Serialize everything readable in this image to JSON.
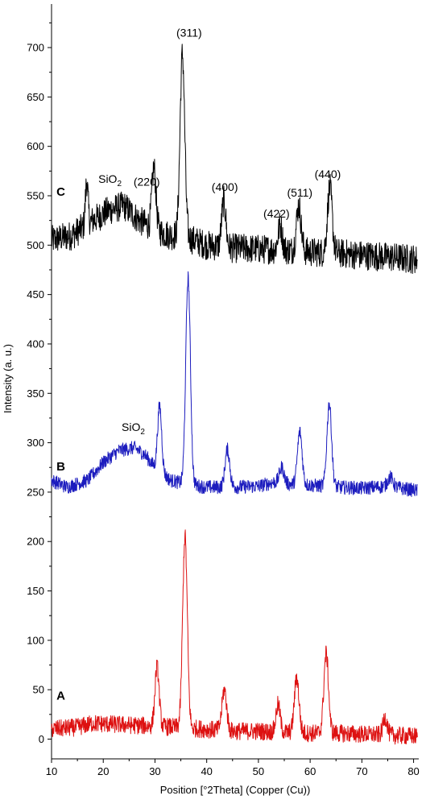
{
  "chart_data": {
    "type": "line",
    "xlabel": "Position [°2Theta] (Copper (Cu))",
    "ylabel": "Intensity (a. u.)",
    "xlim": [
      10,
      81
    ],
    "ylim": [
      -20,
      740
    ],
    "x_ticks": [
      10,
      20,
      30,
      40,
      50,
      60,
      70,
      80
    ],
    "y_ticks": [
      0,
      50,
      100,
      150,
      200,
      250,
      300,
      350,
      400,
      450,
      500,
      550,
      600,
      650,
      700
    ],
    "grid": false,
    "legend": "none",
    "series": [
      {
        "name": "C",
        "color": "#000000",
        "baseline": [
          [
            10,
            505
          ],
          [
            14,
            510
          ],
          [
            18,
            525
          ],
          [
            21,
            535
          ],
          [
            24,
            540
          ],
          [
            27,
            525
          ],
          [
            30,
            515
          ],
          [
            33,
            510
          ],
          [
            36,
            508
          ],
          [
            40,
            500
          ],
          [
            45,
            497
          ],
          [
            50,
            496
          ],
          [
            55,
            495
          ],
          [
            60,
            493
          ],
          [
            65,
            492
          ],
          [
            70,
            490
          ],
          [
            75,
            488
          ],
          [
            80,
            486
          ],
          [
            81,
            485
          ]
        ],
        "noise": 15,
        "peaks": [
          {
            "x": 16.8,
            "y": 565,
            "w": 0.25
          },
          {
            "x": 29.8,
            "y": 578,
            "w": 0.4
          },
          {
            "x": 35.3,
            "y": 693,
            "w": 0.45
          },
          {
            "x": 43.3,
            "y": 545,
            "w": 0.4
          },
          {
            "x": 54.2,
            "y": 520,
            "w": 0.4
          },
          {
            "x": 57.8,
            "y": 540,
            "w": 0.45
          },
          {
            "x": 63.8,
            "y": 558,
            "w": 0.45
          }
        ]
      },
      {
        "name": "B",
        "color": "#1c1cbe",
        "baseline": [
          [
            10,
            262
          ],
          [
            13,
            255
          ],
          [
            17,
            262
          ],
          [
            20,
            280
          ],
          [
            23,
            292
          ],
          [
            26,
            295
          ],
          [
            28,
            288
          ],
          [
            30,
            275
          ],
          [
            33,
            262
          ],
          [
            36,
            258
          ],
          [
            40,
            255
          ],
          [
            45,
            255
          ],
          [
            50,
            256
          ],
          [
            53,
            260
          ],
          [
            56,
            258
          ],
          [
            60,
            257
          ],
          [
            65,
            255
          ],
          [
            70,
            254
          ],
          [
            75,
            256
          ],
          [
            80,
            252
          ],
          [
            81,
            251
          ]
        ],
        "noise": 7,
        "peaks": [
          {
            "x": 30.9,
            "y": 337,
            "w": 0.4
          },
          {
            "x": 36.4,
            "y": 467,
            "w": 0.45
          },
          {
            "x": 44.0,
            "y": 293,
            "w": 0.45
          },
          {
            "x": 54.5,
            "y": 275,
            "w": 0.45
          },
          {
            "x": 58.0,
            "y": 311,
            "w": 0.45
          },
          {
            "x": 63.7,
            "y": 340,
            "w": 0.45
          },
          {
            "x": 75.5,
            "y": 265,
            "w": 0.5
          }
        ]
      },
      {
        "name": "A",
        "color": "#dd1111",
        "baseline": [
          [
            10,
            10
          ],
          [
            15,
            12
          ],
          [
            18,
            16
          ],
          [
            22,
            15
          ],
          [
            26,
            14
          ],
          [
            30,
            13
          ],
          [
            34,
            12
          ],
          [
            40,
            10
          ],
          [
            45,
            8
          ],
          [
            50,
            8
          ],
          [
            55,
            7
          ],
          [
            60,
            6
          ],
          [
            65,
            6
          ],
          [
            70,
            5
          ],
          [
            75,
            4
          ],
          [
            80,
            3
          ]
        ],
        "noise": 9,
        "peaks": [
          {
            "x": 30.4,
            "y": 73,
            "w": 0.4
          },
          {
            "x": 35.8,
            "y": 205,
            "w": 0.45
          },
          {
            "x": 43.4,
            "y": 50,
            "w": 0.45
          },
          {
            "x": 53.8,
            "y": 35,
            "w": 0.4
          },
          {
            "x": 57.4,
            "y": 62,
            "w": 0.45
          },
          {
            "x": 63.1,
            "y": 87,
            "w": 0.45
          },
          {
            "x": 74.5,
            "y": 22,
            "w": 0.4
          }
        ]
      }
    ],
    "annotations": [
      {
        "text": "C",
        "x": 11.8,
        "y": 550,
        "role": "panel"
      },
      {
        "text": "B",
        "x": 11.8,
        "y": 272,
        "role": "panel"
      },
      {
        "text": "A",
        "x": 11.8,
        "y": 40,
        "role": "panel"
      },
      {
        "text": "SiO",
        "sub": "2",
        "x": 21.3,
        "y": 563,
        "role": "label"
      },
      {
        "text": "SiO",
        "sub": "2",
        "x": 25.8,
        "y": 312,
        "role": "label"
      },
      {
        "text": "(311)",
        "x": 36.6,
        "y": 711,
        "role": "label"
      },
      {
        "text": "(220)",
        "x": 28.4,
        "y": 560,
        "role": "label"
      },
      {
        "text": "(400)",
        "x": 43.5,
        "y": 555,
        "role": "label"
      },
      {
        "text": "(422)",
        "x": 53.5,
        "y": 528,
        "role": "label"
      },
      {
        "text": "(511)",
        "x": 58.0,
        "y": 549,
        "role": "label"
      },
      {
        "text": "(440)",
        "x": 63.4,
        "y": 568,
        "role": "label"
      }
    ]
  }
}
